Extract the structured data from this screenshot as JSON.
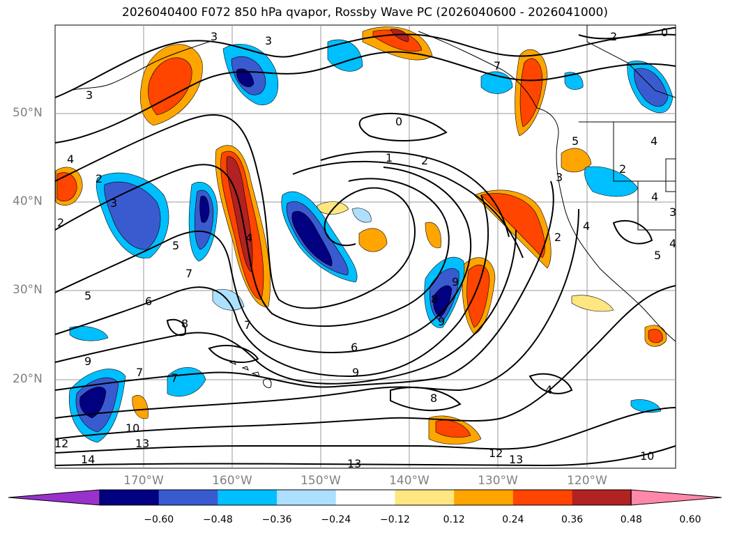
{
  "title": "2026040400 F072 850 hPa qvapor, Rossby Wave PC (2026040600 - 2026041000)",
  "map": {
    "projection": "lat-lon",
    "lon_range": [
      -180,
      -110
    ],
    "lat_range": [
      10,
      60
    ],
    "grid": true,
    "lat_labels": [
      "50°N",
      "40°N",
      "30°N",
      "20°N"
    ],
    "lon_labels": [
      "170°W",
      "160°W",
      "150°W",
      "140°W",
      "130°W",
      "120°W"
    ],
    "contour_labels": [
      "3",
      "2",
      "0",
      "1",
      "2",
      "3",
      "2",
      "3",
      "4",
      "3",
      "4",
      "5",
      "5",
      "6",
      "7",
      "7",
      "8",
      "7",
      "8",
      "9",
      "9",
      "6",
      "9",
      "8",
      "4",
      "2",
      "4",
      "10",
      "12",
      "13",
      "14",
      "13",
      "12",
      "13",
      "10",
      "2",
      "0",
      "4",
      "3",
      "4",
      "3",
      "5",
      "5",
      "7",
      "7",
      "9",
      "2",
      "4"
    ]
  },
  "colorbar": {
    "levels": [
      -0.72,
      -0.6,
      -0.48,
      -0.36,
      -0.24,
      -0.12,
      0.12,
      0.24,
      0.36,
      0.48,
      0.6,
      0.72
    ],
    "tick_labels": [
      "−0.60",
      "−0.48",
      "−0.36",
      "−0.24",
      "−0.12",
      "0.12",
      "0.24",
      "0.36",
      "0.48",
      "0.60"
    ],
    "colors": [
      "#9932CC",
      "#000080",
      "#3A5BD0",
      "#00BFFF",
      "#ADDFFF",
      "#FFFFFF",
      "#FFE680",
      "#FFA500",
      "#FF4500",
      "#B22222",
      "#FF88AA"
    ],
    "extend": "both"
  }
}
